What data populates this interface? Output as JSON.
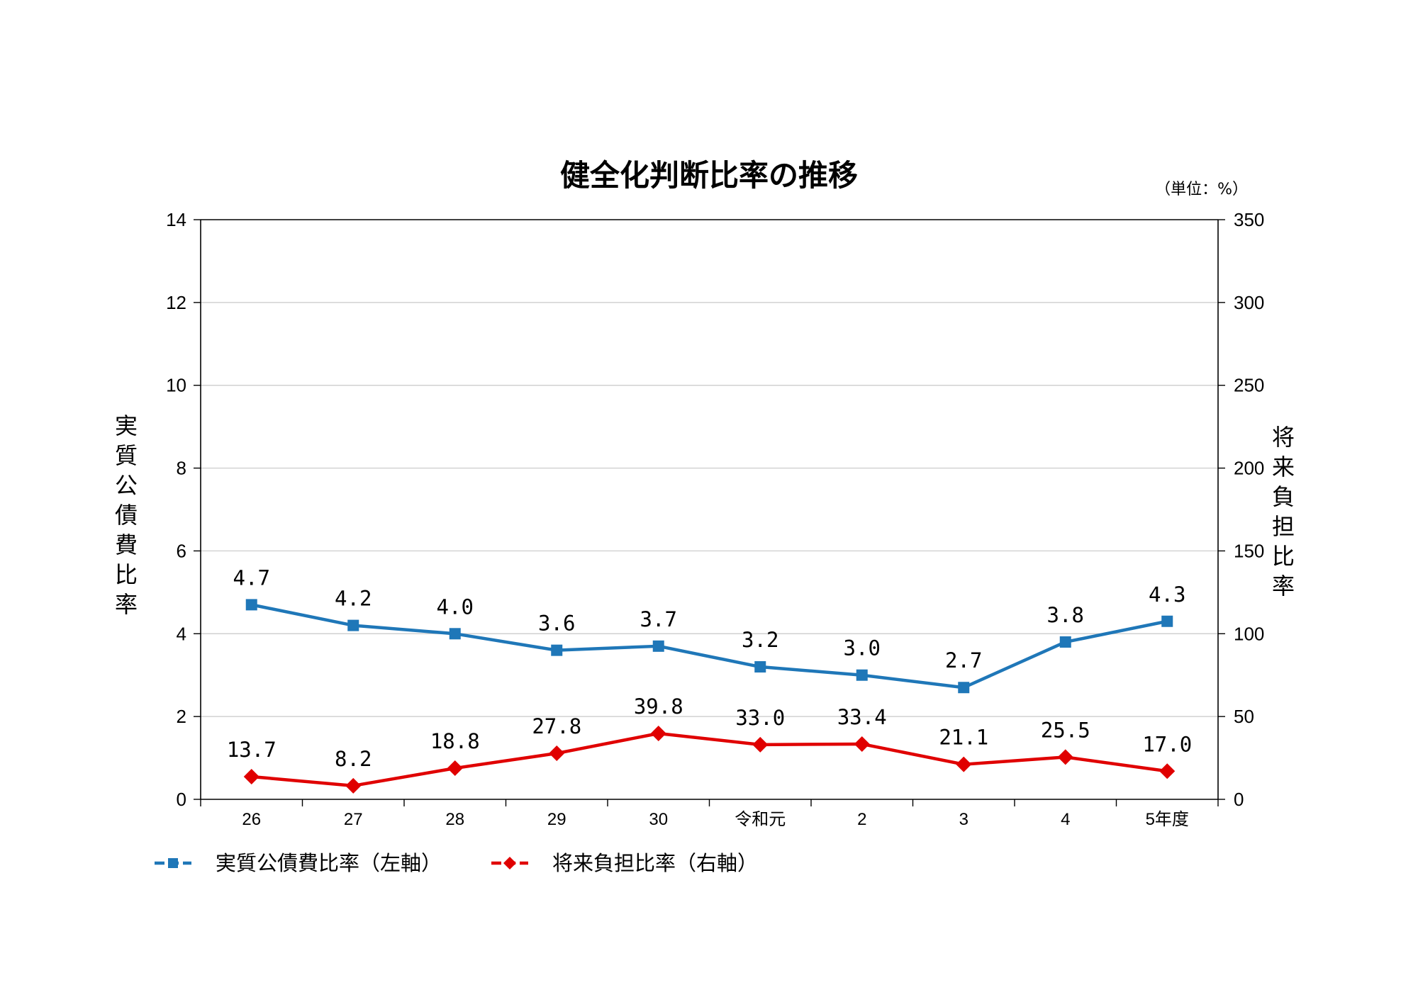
{
  "chart_data": {
    "type": "line",
    "title": "健全化判断比率の推移",
    "unit_note": "（単位：%）",
    "categories": [
      "26",
      "27",
      "28",
      "29",
      "30",
      "令和元",
      "2",
      "3",
      "4",
      "5年度"
    ],
    "y_left": {
      "label": "実質公債費比率",
      "range": [
        0,
        14
      ],
      "ticks": [
        "0",
        "2",
        "4",
        "6",
        "8",
        "10",
        "12",
        "14"
      ]
    },
    "y_right": {
      "label": "将来負担比率",
      "range": [
        0,
        350
      ],
      "ticks": [
        "0",
        "50",
        "100",
        "150",
        "200",
        "250",
        "300",
        "350"
      ]
    },
    "grid": true,
    "legend_position": "bottom-left",
    "series": [
      {
        "name": "実質公債費比率（左軸）",
        "axis": "left",
        "color": "#1F77B8",
        "marker": "square",
        "values": [
          4.7,
          4.2,
          4.0,
          3.6,
          3.7,
          3.2,
          3.0,
          2.7,
          3.8,
          4.3
        ],
        "labels": [
          "4.7",
          "4.2",
          "4.0",
          "3.6",
          "3.7",
          "3.2",
          "3.0",
          "2.7",
          "3.8",
          "4.3"
        ]
      },
      {
        "name": "将来負担比率（右軸）",
        "axis": "right",
        "color": "#E00000",
        "marker": "diamond",
        "values": [
          13.7,
          8.2,
          18.8,
          27.8,
          39.8,
          33.0,
          33.4,
          21.1,
          25.5,
          17.0
        ],
        "labels": [
          "13.7",
          "8.2",
          "18.8",
          "27.8",
          "39.8",
          "33.0",
          "33.4",
          "21.1",
          "25.5",
          "17.0"
        ]
      }
    ]
  }
}
